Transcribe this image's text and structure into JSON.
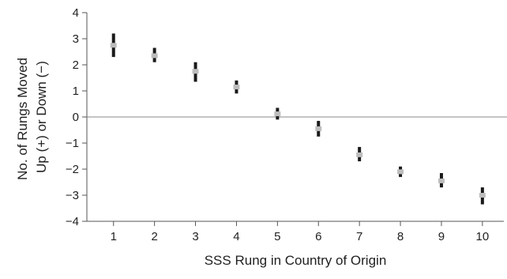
{
  "chart_data": {
    "type": "scatter",
    "title": "",
    "xlabel": "SSS Rung in Country of Origin",
    "ylabel_lines": [
      "No. of Rungs Moved",
      "Up (+) or Down (−)"
    ],
    "x_ticks": [
      "1",
      "2",
      "3",
      "4",
      "5",
      "6",
      "7",
      "8",
      "9",
      "10"
    ],
    "y_ticks": [
      "4",
      "3",
      "2",
      "1",
      "0",
      "−1",
      "−2",
      "−3",
      "−4"
    ],
    "xlim": [
      0.35,
      10.6
    ],
    "ylim": [
      -4,
      4
    ],
    "zero_line": true,
    "grid": false,
    "points": [
      {
        "x": 1,
        "y": 2.75,
        "ci": [
          2.3,
          3.2
        ]
      },
      {
        "x": 2,
        "y": 2.35,
        "ci": [
          2.1,
          2.65
        ]
      },
      {
        "x": 3,
        "y": 1.75,
        "ci": [
          1.35,
          2.1
        ]
      },
      {
        "x": 4,
        "y": 1.15,
        "ci": [
          0.9,
          1.4
        ]
      },
      {
        "x": 5,
        "y": 0.12,
        "ci": [
          -0.1,
          0.35
        ]
      },
      {
        "x": 6,
        "y": -0.45,
        "ci": [
          -0.75,
          -0.15
        ]
      },
      {
        "x": 7,
        "y": -1.45,
        "ci": [
          -1.7,
          -1.15
        ]
      },
      {
        "x": 8,
        "y": -2.1,
        "ci": [
          -2.3,
          -1.9
        ]
      },
      {
        "x": 9,
        "y": -2.45,
        "ci": [
          -2.7,
          -2.15
        ]
      },
      {
        "x": 10,
        "y": -3.0,
        "ci": [
          -3.35,
          -2.7
        ]
      }
    ],
    "colors": {
      "axis": "#555555",
      "zero_line": "#888888",
      "error_bar": "#1a1a1a",
      "marker": "#bdbdbd"
    }
  }
}
